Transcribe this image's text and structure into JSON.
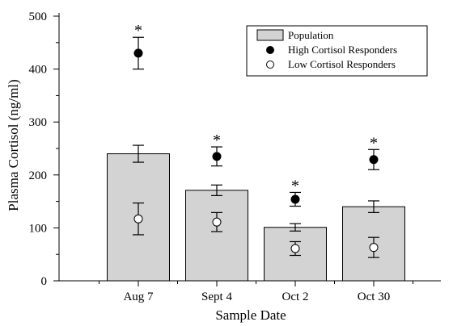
{
  "chart_data": {
    "type": "bar",
    "xlabel": "Sample Date",
    "ylabel": "Plasma Cortisol (ng/ml)",
    "ylim": [
      0,
      500
    ],
    "yticks": [
      0,
      100,
      200,
      300,
      400,
      500
    ],
    "categories": [
      "Aug 7",
      "Sept 4",
      "Oct 2",
      "Oct 30"
    ],
    "series": [
      {
        "name": "Population",
        "kind": "bar",
        "color": "#d3d3d3",
        "values": [
          240,
          171,
          101,
          140
        ],
        "error": [
          16,
          10,
          7,
          11
        ]
      },
      {
        "name": "High Cortisol Responders",
        "kind": "point",
        "fill": "#000000",
        "values": [
          430,
          235,
          154,
          229
        ],
        "error": [
          30,
          18,
          13,
          19
        ]
      },
      {
        "name": "Low Cortisol Responders",
        "kind": "point",
        "fill": "#ffffff",
        "values": [
          117,
          111,
          61,
          63
        ],
        "error": [
          30,
          18,
          13,
          19
        ]
      }
    ],
    "annotations": [
      {
        "category": "Aug 7",
        "text": "*"
      },
      {
        "category": "Sept 4",
        "text": "*"
      },
      {
        "category": "Oct 2",
        "text": "*"
      },
      {
        "category": "Oct 30",
        "text": "*"
      }
    ],
    "legend_position": "top-right",
    "grid": false
  }
}
